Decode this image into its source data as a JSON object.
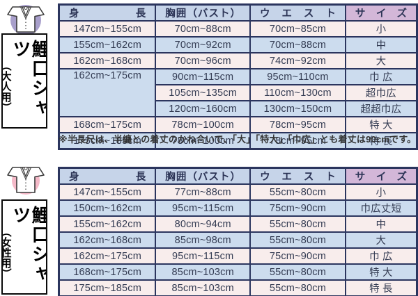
{
  "colors": {
    "line": "#2b355e",
    "hdr-blue": "#c6d4e9",
    "hdr-mauve": "#d3b7d8",
    "row-pink": "#f8edec",
    "row-blue": "#ccdcee",
    "cell-text": "#333b52",
    "circle-lav": "#a89fcb",
    "circle-pink": "#f5b9c8"
  },
  "sections": {
    "adult": {
      "label_title": "鯉口シャツ",
      "label_sub": "（大人用）",
      "icon": "shirt-icon",
      "icon_circle_color": "#a89fcb"
    },
    "women": {
      "label_title": "鯉口シャツ",
      "label_sub": "（女性用）",
      "icon": "shirt-icon",
      "icon_circle_color": "#f5b9c8"
    }
  },
  "note": "※半長尺は、半纏との着丈のかね合いで、「大」「特大」「巾広」とも着丈は90cmです。",
  "tables": {
    "adult": {
      "headers": [
        "身長",
        "胸囲（バスト）",
        "ウエスト",
        "サイズ"
      ],
      "rows": [
        [
          "147cm~155cm",
          "70cm~88cm",
          "70cm~85cm",
          "小"
        ],
        [
          "155cm~162cm",
          "70cm~92cm",
          "70cm~88cm",
          "中"
        ],
        [
          "162cm~168cm",
          "70cm~96cm",
          "74cm~92cm",
          "大"
        ],
        [
          {
            "text": "162cm~175cm",
            "rowspan": 3
          },
          "90cm~115cm",
          "95cm~110cm",
          "巾 広"
        ],
        [
          "105cm~135cm",
          "110cm~130cm",
          "超巾広"
        ],
        [
          "120cm~160cm",
          "130cm~150cm",
          "超超巾広"
        ],
        [
          "168cm~175cm",
          "78cm~100cm",
          "78cm~95cm",
          "特 大"
        ],
        [
          "175cm~185cm",
          "78cm~100cm",
          "78cm~95cm",
          "特 長"
        ]
      ]
    },
    "women": {
      "headers": [
        "身長",
        "胸囲（バスト）",
        "ウエスト",
        "サイズ"
      ],
      "rows": [
        [
          "147cm~155cm",
          "77cm~88cm",
          "55cm~80cm",
          "小"
        ],
        [
          "150cm~162cm",
          "95cm~115cm",
          "75cm~90cm",
          "巾広丈短"
        ],
        [
          "155cm~162cm",
          "80cm~94cm",
          "55cm~80cm",
          "中"
        ],
        [
          "162cm~168cm",
          "85cm~98cm",
          "55cm~80cm",
          "大"
        ],
        [
          "162cm~175cm",
          "95cm~115cm",
          "75cm~90cm",
          "巾 広"
        ],
        [
          "168cm~175cm",
          "85cm~103cm",
          "55cm~80cm",
          "特 大"
        ],
        [
          "175cm~185cm",
          "85cm~103cm",
          "55cm~80cm",
          "特 長"
        ]
      ]
    }
  }
}
